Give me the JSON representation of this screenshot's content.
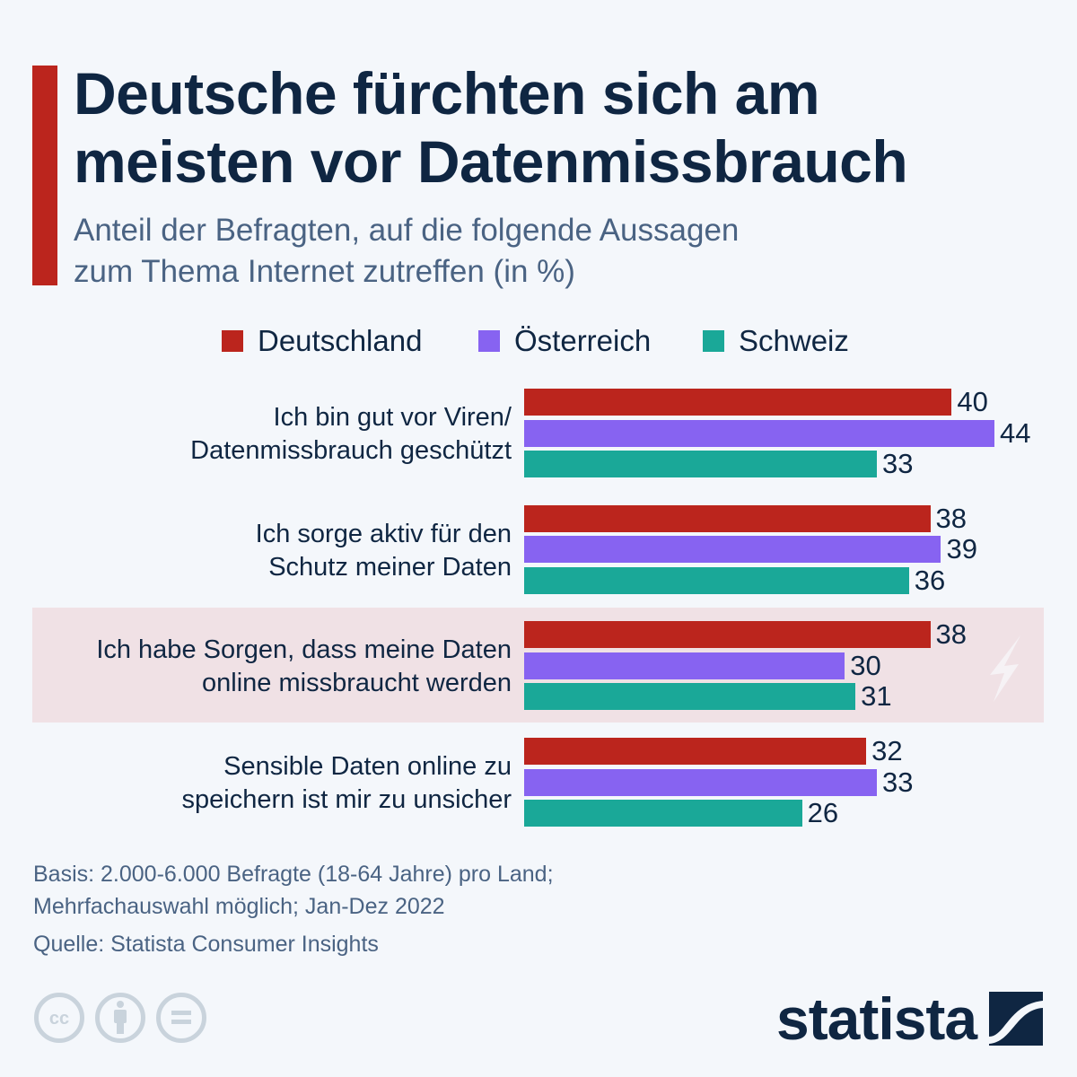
{
  "header": {
    "title_line1": "Deutsche fürchten sich am",
    "title_line2": "meisten vor Datenmissbrauch",
    "subtitle_line1": "Anteil der Befragten, auf die folgende Aussagen",
    "subtitle_line2": "zum Thema Internet zutreffen (in %)"
  },
  "colors": {
    "accent": "#bb251d",
    "deutschland": "#bb251d",
    "oesterreich": "#8763f1",
    "schweiz": "#1aa898",
    "highlight_bg": "#f0e1e5",
    "text": "#0f2642",
    "muted_text": "#4a6383",
    "cc_icon": "#c9d3dc"
  },
  "chart_data": {
    "type": "bar",
    "orientation": "horizontal",
    "title": "Deutsche fürchten sich am meisten vor Datenmissbrauch",
    "subtitle": "Anteil der Befragten, auf die folgende Aussagen zum Thema Internet zutreffen (in %)",
    "xlabel": "",
    "ylabel": "",
    "xlim": [
      0,
      44
    ],
    "grid": false,
    "legend_position": "top-center",
    "categories": [
      [
        "Ich bin gut vor Viren/",
        "Datenmissbrauch geschützt"
      ],
      [
        "Ich sorge aktiv für den",
        "Schutz meiner Daten"
      ],
      [
        "Ich habe Sorgen, dass meine Daten",
        "online missbraucht werden"
      ],
      [
        "Sensible Daten online zu",
        "speichern ist mir zu unsicher"
      ]
    ],
    "highlighted_category_index": 2,
    "series": [
      {
        "name": "Deutschland",
        "color": "#bb251d",
        "values": [
          40,
          38,
          38,
          32
        ]
      },
      {
        "name": "Österreich",
        "color": "#8763f1",
        "values": [
          44,
          39,
          30,
          33
        ]
      },
      {
        "name": "Schweiz",
        "color": "#1aa898",
        "values": [
          33,
          36,
          31,
          26
        ]
      }
    ]
  },
  "footer": {
    "basis_line1": "Basis: 2.000-6.000 Befragte (18-64 Jahre) pro Land;",
    "basis_line2": "Mehrfachauswahl möglich; Jan-Dez 2022",
    "source": "Quelle: Statista Consumer Insights",
    "logo_text": "statista",
    "icons": [
      "creative-commons-icon",
      "attribution-icon",
      "no-derivatives-icon"
    ]
  }
}
